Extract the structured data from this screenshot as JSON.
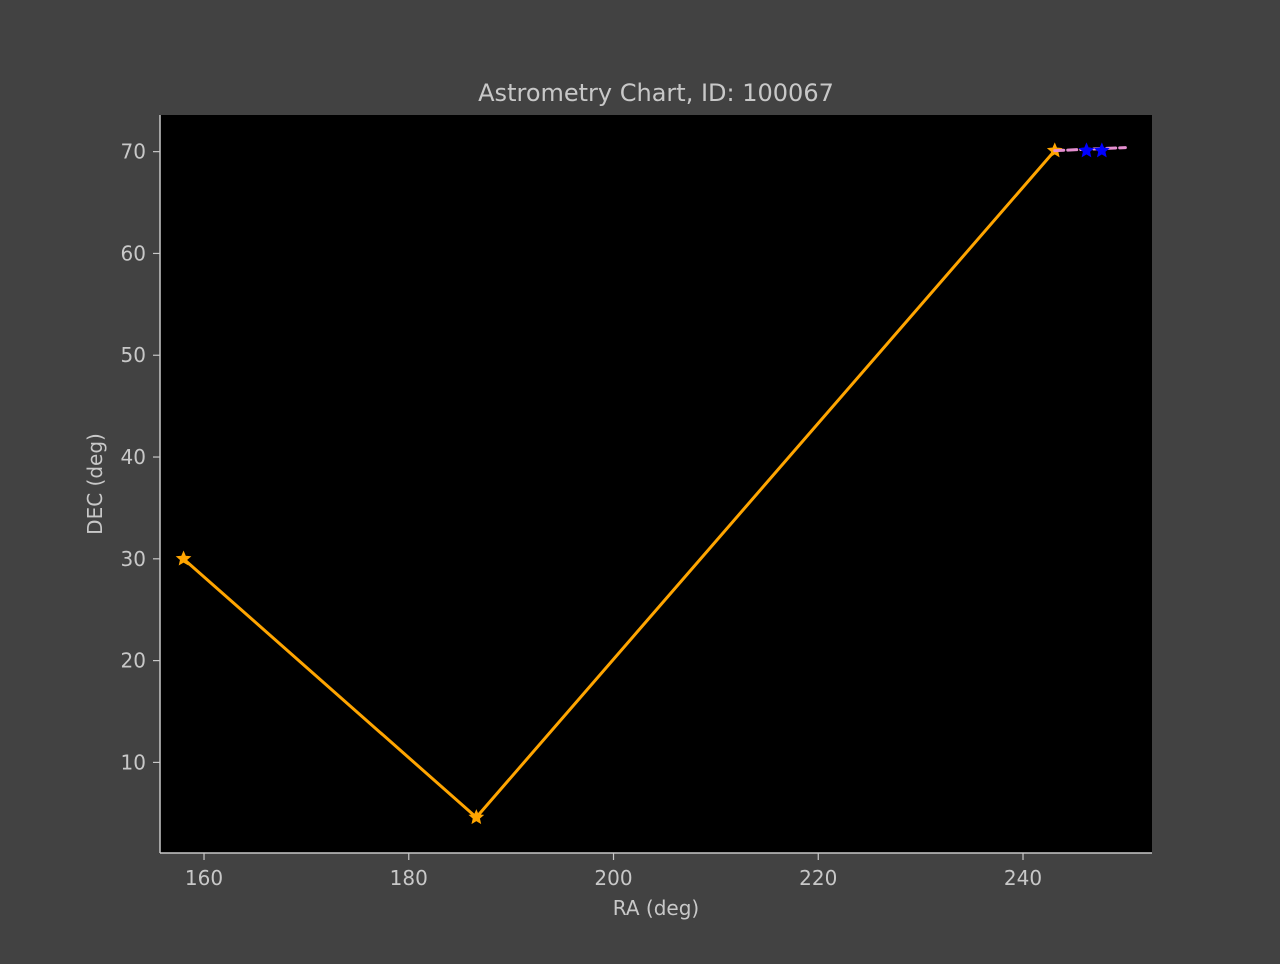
{
  "figure": {
    "background": "#424242",
    "plot_background": "#000000",
    "text_color": "#c8c8c8"
  },
  "chart_data": {
    "type": "line",
    "title": "Astrometry Chart, ID: 100067",
    "xlabel": "RA (deg)",
    "ylabel": "DEC (deg)",
    "xlim": [
      155.7,
      252.6
    ],
    "ylim": [
      1.1,
      73.6
    ],
    "xticks": [
      160,
      180,
      200,
      220,
      240
    ],
    "yticks": [
      10,
      20,
      30,
      40,
      50,
      60,
      70
    ],
    "grid": false,
    "legend": "none",
    "series": [
      {
        "color": "#ffa500",
        "style": "solid",
        "marker": "star",
        "points": [
          {
            "x": 158.0,
            "y": 30.0
          },
          {
            "x": 186.6,
            "y": 4.6
          },
          {
            "x": 243.1,
            "y": 70.1
          }
        ]
      },
      {
        "color": "#e58fd0",
        "style": "dashed",
        "marker": "none",
        "points": [
          {
            "x": 243.1,
            "y": 70.1
          },
          {
            "x": 250.0,
            "y": 70.4
          }
        ]
      },
      {
        "color": "#0000ff",
        "style": "none",
        "marker": "star",
        "points": [
          {
            "x": 246.2,
            "y": 70.1
          },
          {
            "x": 247.7,
            "y": 70.1
          }
        ]
      }
    ]
  }
}
